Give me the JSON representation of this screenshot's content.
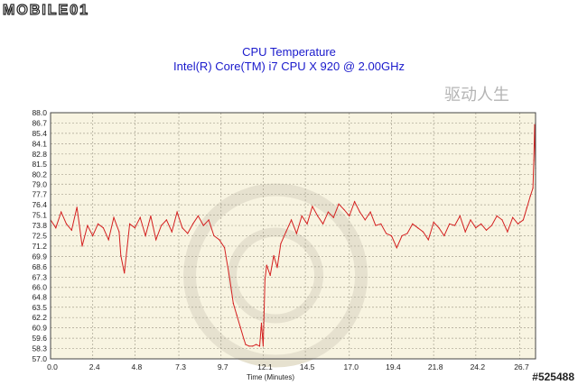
{
  "site_logo": "MOBILE01",
  "badge_text": "驱动人生",
  "image_id": "#525488",
  "chart_data": {
    "type": "line",
    "title": "CPU Temperature",
    "subtitle": "Intel(R) Core(TM) i7 CPU X 920 @ 2.00GHz",
    "xlabel": "Time (Minutes)",
    "ylabel": "",
    "xlim": [
      0.0,
      27.6
    ],
    "ylim": [
      57.0,
      88.0
    ],
    "x_ticks": [
      "0.0",
      "2.4",
      "4.8",
      "7.3",
      "9.7",
      "12.1",
      "14.5",
      "17.0",
      "19.4",
      "21.8",
      "24.2",
      "26.7"
    ],
    "x_tick_values": [
      0.0,
      2.4,
      4.8,
      7.3,
      9.7,
      12.1,
      14.5,
      17.0,
      19.4,
      21.8,
      24.2,
      26.7
    ],
    "y_ticks": [
      "88.0",
      "86.7",
      "85.4",
      "84.1",
      "82.8",
      "81.5",
      "80.2",
      "79.0",
      "77.7",
      "76.4",
      "75.1",
      "73.8",
      "72.5",
      "71.2",
      "69.9",
      "68.6",
      "67.3",
      "66.0",
      "64.8",
      "63.5",
      "62.2",
      "60.9",
      "59.6",
      "58.3",
      "57.0"
    ],
    "grid": true,
    "line_color": "#d42020",
    "series": [
      {
        "name": "CPU Temperature",
        "x": [
          0.0,
          0.3,
          0.6,
          0.9,
          1.2,
          1.5,
          1.8,
          2.1,
          2.4,
          2.7,
          3.0,
          3.3,
          3.6,
          3.9,
          4.0,
          4.2,
          4.5,
          4.8,
          5.1,
          5.4,
          5.7,
          6.0,
          6.3,
          6.6,
          6.9,
          7.2,
          7.5,
          7.8,
          8.1,
          8.4,
          8.7,
          9.0,
          9.3,
          9.6,
          9.9,
          10.2,
          10.4,
          10.6,
          10.8,
          11.0,
          11.1,
          11.3,
          11.5,
          11.7,
          11.9,
          12.0,
          12.1,
          12.2,
          12.3,
          12.5,
          12.7,
          12.9,
          13.1,
          13.4,
          13.7,
          14.0,
          14.3,
          14.6,
          14.9,
          15.2,
          15.5,
          15.8,
          16.1,
          16.4,
          16.7,
          17.0,
          17.3,
          17.6,
          17.9,
          18.2,
          18.5,
          18.8,
          19.1,
          19.4,
          19.7,
          20.0,
          20.3,
          20.6,
          20.9,
          21.2,
          21.5,
          21.8,
          22.1,
          22.4,
          22.7,
          23.0,
          23.3,
          23.6,
          23.9,
          24.2,
          24.5,
          24.8,
          25.1,
          25.4,
          25.7,
          26.0,
          26.3,
          26.6,
          26.9,
          27.1,
          27.3,
          27.45,
          27.5,
          27.55,
          27.6
        ],
        "values": [
          74.5,
          73.5,
          75.5,
          74.0,
          73.2,
          76.1,
          71.2,
          73.8,
          72.5,
          74.0,
          73.5,
          72.0,
          74.8,
          73.0,
          70.0,
          67.8,
          74.0,
          73.5,
          74.8,
          72.5,
          75.0,
          72.0,
          73.8,
          74.5,
          73.0,
          75.5,
          73.5,
          72.8,
          74.0,
          75.0,
          73.8,
          74.5,
          72.5,
          72.0,
          71.0,
          67.0,
          64.0,
          62.5,
          61.0,
          59.5,
          58.8,
          58.6,
          58.6,
          58.8,
          58.6,
          61.5,
          58.6,
          67.0,
          68.8,
          67.5,
          70.0,
          68.5,
          71.5,
          73.0,
          74.5,
          72.8,
          75.0,
          74.0,
          76.2,
          75.0,
          74.0,
          75.5,
          74.8,
          76.5,
          75.8,
          75.0,
          76.8,
          75.5,
          74.5,
          75.5,
          73.8,
          74.0,
          72.8,
          72.5,
          71.0,
          72.5,
          72.8,
          74.0,
          73.5,
          73.0,
          72.0,
          74.2,
          73.5,
          72.5,
          74.0,
          73.8,
          75.0,
          73.0,
          74.5,
          73.5,
          74.0,
          73.2,
          73.8,
          75.0,
          74.5,
          73.0,
          74.8,
          74.0,
          74.5,
          76.0,
          77.5,
          78.5,
          82.0,
          86.5,
          81.0
        ]
      }
    ]
  }
}
